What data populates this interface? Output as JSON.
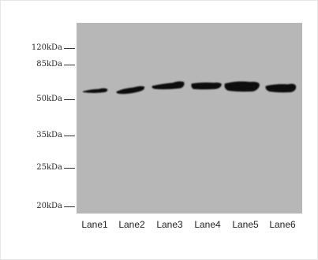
{
  "markers": [
    {
      "label": "120kDa"
    },
    {
      "label": "85kDa"
    },
    {
      "label": "50kDa"
    },
    {
      "label": "35kDa"
    },
    {
      "label": "25kDa"
    },
    {
      "label": "20kDa"
    }
  ],
  "lanes": [
    {
      "label": "Lane1"
    },
    {
      "label": "Lane2"
    },
    {
      "label": "Lane3"
    },
    {
      "label": "Lane4"
    },
    {
      "label": "Lane5"
    },
    {
      "label": "Lane6"
    }
  ],
  "colors": {
    "membrane": "#b7b7b7",
    "band": "#111111"
  }
}
